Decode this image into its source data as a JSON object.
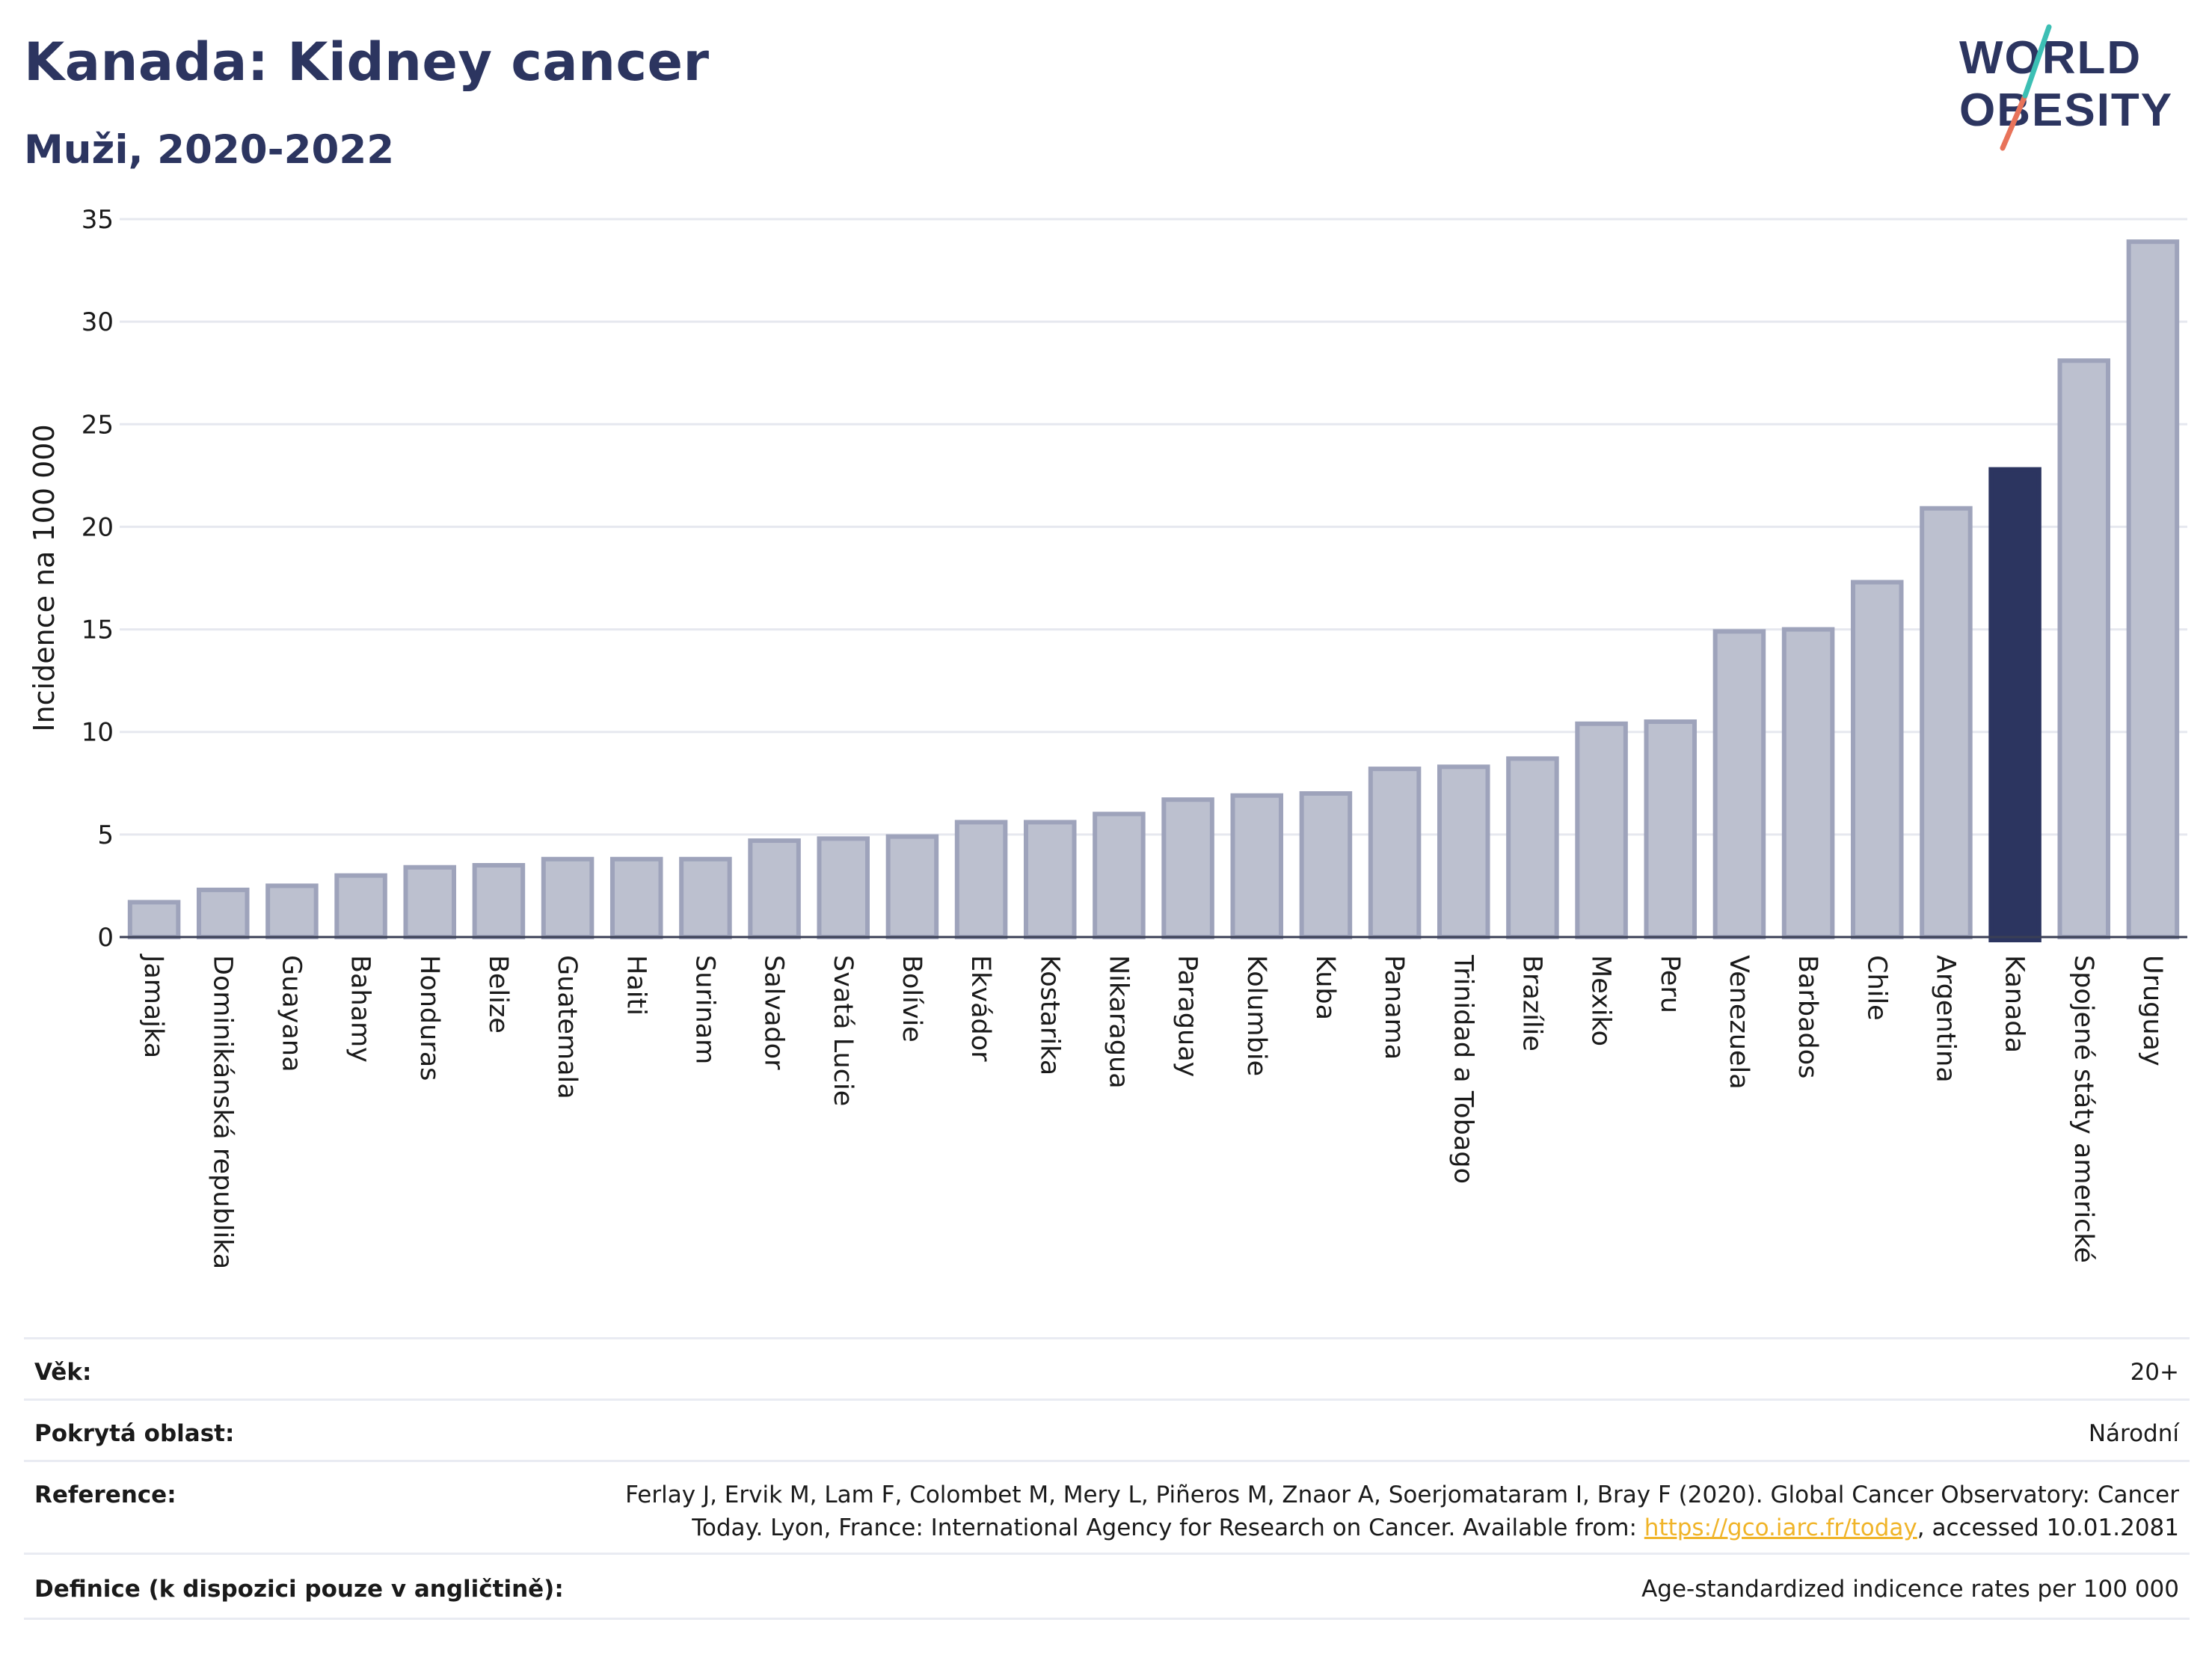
{
  "title": "Kanada: Kidney cancer",
  "subtitle": "Muži, 2020-2022",
  "logo": {
    "line1": "WORLD",
    "line2": "OBESITY"
  },
  "colors": {
    "bar": "#bcc0cf",
    "bar_edge": "#9ea3bb",
    "highlight": "#2c3560",
    "grid": "#e6e8ef",
    "accent": "#2c3560",
    "link": "#f0b429"
  },
  "chart_data": {
    "type": "bar",
    "ylabel": "Incidence na 100 000",
    "xlabel": "",
    "ylim": [
      0,
      35
    ],
    "yticks": [
      0,
      5,
      10,
      15,
      20,
      25,
      30,
      35
    ],
    "grid": true,
    "highlight": "Kanada",
    "categories": [
      "Jamajka",
      "Dominikánská republika",
      "Guayana",
      "Bahamy",
      "Honduras",
      "Belize",
      "Guatemala",
      "Haiti",
      "Surinam",
      "Salvador",
      "Svatá Lucie",
      "Bolívie",
      "Ekvádor",
      "Kostarika",
      "Nikaragua",
      "Paraguay",
      "Kolumbie",
      "Kuba",
      "Panama",
      "Trinidad a Tobago",
      "Brazílie",
      "Mexiko",
      "Peru",
      "Venezuela",
      "Barbados",
      "Chile",
      "Argentina",
      "Kanada",
      "Spojené státy americké",
      "Uruguay"
    ],
    "values": [
      1.7,
      2.3,
      2.5,
      3.0,
      3.4,
      3.5,
      3.8,
      3.8,
      3.8,
      4.7,
      4.8,
      4.9,
      5.6,
      5.6,
      6.0,
      6.7,
      6.9,
      7.0,
      8.2,
      8.3,
      8.7,
      10.4,
      10.5,
      14.9,
      15.0,
      17.3,
      20.9,
      22.8,
      28.1,
      33.9
    ]
  },
  "footer": {
    "age_label": "Věk:",
    "age_value": "20+",
    "area_label": "Pokrytá oblast:",
    "area_value": "Národní",
    "reference_label": "Reference:",
    "reference_line1": "Ferlay J, Ervik M, Lam F, Colombet M, Mery L, Piñeros M, Znaor A, Soerjomataram I, Bray F (2020). Global Cancer Observatory: Cancer",
    "reference_line2_pre": "Today. Lyon, France: International Agency for Research on Cancer. Available from: ",
    "reference_link": "https://gco.iarc.fr/today",
    "reference_line2_post": ", accessed 10.01.2081",
    "definition_label": "Definice (k dispozici pouze v angličtině):",
    "definition_value": "Age-standardized indicence rates per 100 000"
  }
}
